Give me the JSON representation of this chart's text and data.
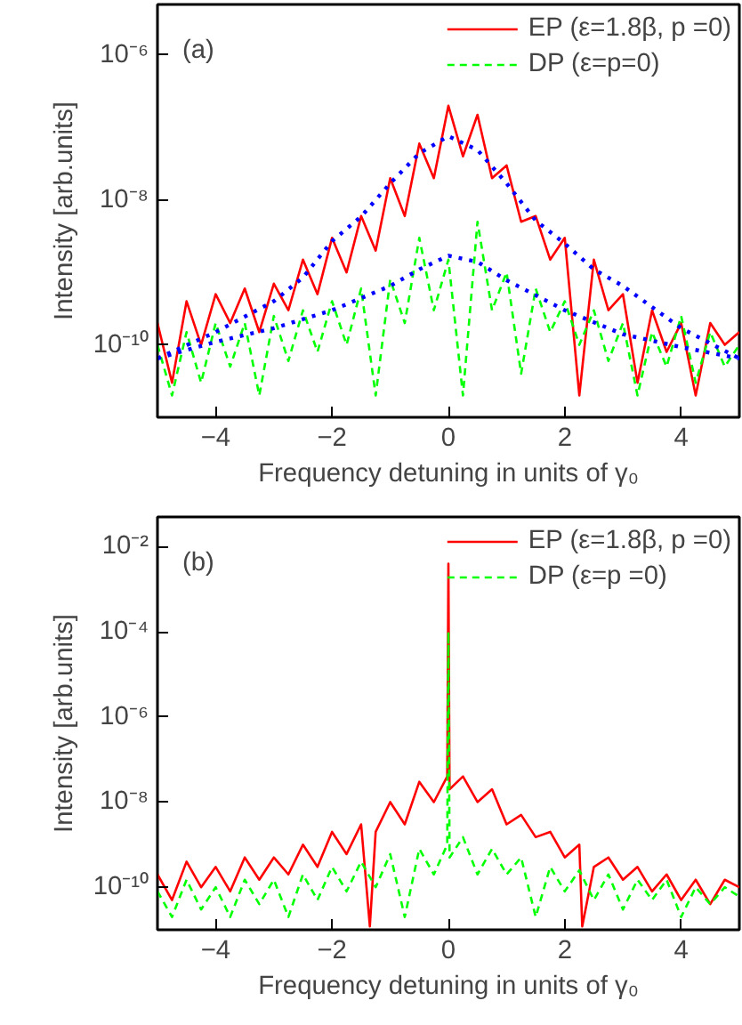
{
  "chart_data": [
    {
      "type": "line",
      "xlabel": "Frequency detuning in units of γ₀",
      "ylabel": "Intensity [arb.units]",
      "annotations": [
        "(a)"
      ],
      "xlim": [
        -5,
        5
      ],
      "ylim": [
        1e-11,
        5e-06
      ],
      "xticks": [
        -4,
        -2,
        0,
        2,
        4
      ],
      "yticks": [
        {
          "value": 1e-10,
          "label": "10⁻¹⁰"
        },
        {
          "value": 1e-08,
          "label": "10⁻⁸"
        },
        {
          "value": 1e-06,
          "label": "10⁻⁶"
        }
      ],
      "log": "y",
      "grid": false,
      "legend": "top right",
      "series": [
        {
          "name": "EP (ε=1.8β, p =0)",
          "color": "#ff0000",
          "line_style": "solid",
          "x": [
            -5,
            -4.75,
            -4.5,
            -4.25,
            -4,
            -3.75,
            -3.5,
            -3.25,
            -3,
            -2.75,
            -2.5,
            -2.25,
            -2,
            -1.75,
            -1.5,
            -1.25,
            -1,
            -0.75,
            -0.5,
            -0.25,
            0,
            0.25,
            0.5,
            0.75,
            1,
            1.25,
            1.5,
            1.75,
            2,
            2.25,
            2.5,
            2.75,
            3,
            3.25,
            3.5,
            3.75,
            4,
            4.25,
            4.5,
            4.75,
            5
          ],
          "values": [
            2e-10,
            3e-11,
            4e-10,
            1e-10,
            5e-10,
            2e-10,
            6e-10,
            1.5e-10,
            7e-10,
            3e-10,
            1.5e-09,
            5e-10,
            3e-09,
            1e-09,
            6e-09,
            2e-09,
            2e-08,
            6e-09,
            6e-08,
            2e-08,
            2e-07,
            4e-08,
            1.5e-07,
            2e-08,
            3e-08,
            5e-09,
            6e-09,
            1.5e-09,
            3e-09,
            2e-11,
            1.5e-09,
            3e-10,
            5e-10,
            3e-11,
            3e-10,
            8e-11,
            2e-10,
            2e-11,
            2e-10,
            1e-10,
            1.5e-10
          ]
        },
        {
          "name": "DP (ε=p=0)",
          "color": "#00ff00",
          "line_style": "dashed",
          "x": [
            -5,
            -4.75,
            -4.5,
            -4.25,
            -4,
            -3.75,
            -3.5,
            -3.25,
            -3,
            -2.75,
            -2.5,
            -2.25,
            -2,
            -1.75,
            -1.5,
            -1.25,
            -1,
            -0.75,
            -0.5,
            -0.25,
            0,
            0.25,
            0.5,
            0.75,
            1,
            1.25,
            1.5,
            1.75,
            2,
            2.25,
            2.5,
            2.75,
            3,
            3.25,
            3.5,
            3.75,
            4,
            4.25,
            4.5,
            4.75,
            5
          ],
          "values": [
            1e-10,
            2e-11,
            1.5e-10,
            3e-11,
            2e-10,
            5e-11,
            2e-10,
            2e-11,
            2.5e-10,
            6e-11,
            3e-10,
            8e-11,
            4e-10,
            1e-10,
            6e-10,
            2e-11,
            8e-10,
            2e-10,
            3e-09,
            3e-10,
            1.5e-09,
            2e-11,
            5e-09,
            3e-10,
            1e-09,
            4e-11,
            6e-10,
            1.5e-10,
            4e-10,
            1e-10,
            3e-10,
            6e-11,
            2e-10,
            2e-11,
            1.5e-10,
            5e-11,
            2.5e-10,
            3e-11,
            1.5e-10,
            5e-11,
            1e-10
          ]
        },
        {
          "color": "#0000ff",
          "line_style": "dotted",
          "x": [
            -5,
            -4,
            -3,
            -2.5,
            -2,
            -1.5,
            -1,
            -0.5,
            0,
            0.5,
            1,
            1.5,
            2,
            2.5,
            3,
            4,
            5
          ],
          "values": [
            6.5e-11,
            1.5e-10,
            4e-10,
            8.5e-10,
            2.7e-09,
            5.9e-09,
            1.7e-08,
            4.4e-08,
            7.6e-08,
            4.9e-08,
            1.7e-08,
            5.2e-09,
            2.5e-09,
            1.1e-09,
            6.5e-10,
            1.7e-10,
            6.5e-11
          ]
        },
        {
          "color": "#0000ff",
          "line_style": "dotted",
          "x": [
            -5,
            -4,
            -3,
            -2,
            -1,
            -0.5,
            0,
            0.5,
            1,
            2,
            3,
            4,
            5
          ],
          "values": [
            6.5e-11,
            1.1e-10,
            1.7e-10,
            3e-10,
            6.5e-10,
            1.1e-09,
            1.7e-09,
            1.4e-09,
            7.8e-10,
            3e-10,
            1.4e-10,
            9.3e-11,
            6.5e-11
          ]
        }
      ]
    },
    {
      "type": "line",
      "xlabel": "Frequency detuning in units of γ₀",
      "ylabel": "Intensity [arb.units]",
      "annotations": [
        "(b)"
      ],
      "xlim": [
        -5,
        5
      ],
      "ylim": [
        1e-11,
        0.05
      ],
      "xticks": [
        -4,
        -2,
        0,
        2,
        4
      ],
      "yticks": [
        {
          "value": 1e-10,
          "label": "10⁻¹⁰"
        },
        {
          "value": 1e-08,
          "label": "10⁻⁸"
        },
        {
          "value": 1e-06,
          "label": "10⁻⁶"
        },
        {
          "value": 0.0001,
          "label": "10⁻⁴"
        },
        {
          "value": 0.01,
          "label": "10⁻²"
        }
      ],
      "log": "y",
      "grid": false,
      "legend": "top right",
      "series": [
        {
          "name": "EP (ε=1.8β, p =0)",
          "color": "#ff0000",
          "line_style": "solid",
          "x": [
            -5,
            -4.75,
            -4.5,
            -4.25,
            -4,
            -3.75,
            -3.5,
            -3.25,
            -3,
            -2.75,
            -2.5,
            -2.25,
            -2,
            -1.75,
            -1.5,
            -1.35,
            -1.25,
            -1,
            -0.75,
            -0.5,
            -0.25,
            -0.02,
            0,
            0.02,
            0.25,
            0.5,
            0.75,
            1,
            1.25,
            1.5,
            1.75,
            2,
            2.25,
            2.3,
            2.5,
            2.75,
            3,
            3.25,
            3.5,
            3.75,
            4,
            4.25,
            4.5,
            4.75,
            5
          ],
          "values": [
            2e-10,
            5e-11,
            4e-10,
            1e-10,
            3e-10,
            8e-11,
            5e-10,
            1.5e-10,
            5e-10,
            2e-10,
            1e-09,
            3e-10,
            2e-09,
            6e-10,
            3e-09,
            1.2e-11,
            2e-09,
            1e-08,
            3e-09,
            3e-08,
            1e-08,
            4e-08,
            0.004,
            2e-08,
            4e-08,
            1e-08,
            2e-08,
            3e-09,
            5e-09,
            1.5e-09,
            2e-09,
            5e-10,
            1e-09,
            1.2e-11,
            3e-10,
            5e-10,
            1.5e-10,
            3e-10,
            8e-11,
            2e-10,
            5e-11,
            1.5e-10,
            4e-11,
            1.5e-10,
            1e-10
          ]
        },
        {
          "name": "DP (ε=p =0)",
          "color": "#00ff00",
          "line_style": "dashed",
          "x": [
            -5,
            -4.75,
            -4.5,
            -4.25,
            -4,
            -3.75,
            -3.5,
            -3.25,
            -3,
            -2.75,
            -2.5,
            -2.25,
            -2,
            -1.75,
            -1.5,
            -1.25,
            -1,
            -0.75,
            -0.5,
            -0.25,
            -0.02,
            0,
            0.02,
            0.25,
            0.5,
            0.75,
            1,
            1.25,
            1.5,
            1.75,
            2,
            2.25,
            2.5,
            2.75,
            3,
            3.25,
            3.5,
            3.75,
            4,
            4.25,
            4.5,
            4.75,
            5
          ],
          "values": [
            8e-11,
            2e-11,
            1.5e-10,
            3e-11,
            1e-10,
            2e-11,
            1.5e-10,
            4e-11,
            1.5e-10,
            2e-11,
            2e-10,
            5e-11,
            3e-10,
            8e-11,
            4e-10,
            1e-10,
            6e-10,
            2e-11,
            8e-10,
            2e-10,
            1e-09,
            0.0001,
            5e-10,
            1.5e-09,
            2e-10,
            8e-10,
            2e-10,
            5e-10,
            2e-11,
            3e-10,
            8e-11,
            2.5e-10,
            5e-11,
            2e-10,
            3e-11,
            1.5e-10,
            5e-11,
            1.5e-10,
            2e-11,
            1e-10,
            4e-11,
            1e-10,
            6e-11
          ]
        }
      ]
    }
  ]
}
